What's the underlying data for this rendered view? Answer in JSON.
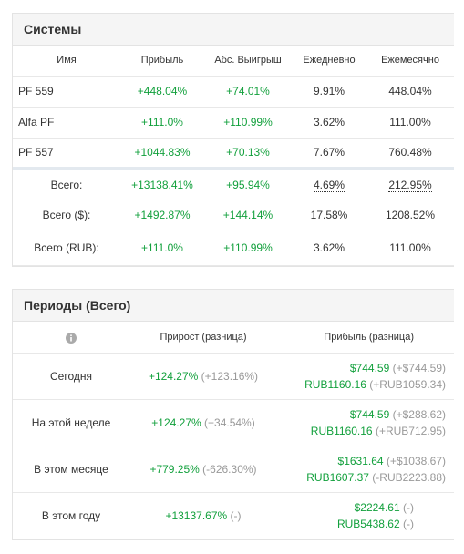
{
  "systems": {
    "title": "Системы",
    "columns": [
      "Имя",
      "Прибыль",
      "Абс. Выигрыш",
      "Ежедневно",
      "Ежемесячно"
    ],
    "rows": [
      [
        "PF 559",
        "+448.04%",
        "+74.01%",
        "9.91%",
        "448.04%"
      ],
      [
        "Alfa PF",
        "+111.0%",
        "+110.99%",
        "3.62%",
        "111.00%"
      ],
      [
        "PF 557",
        "+1044.83%",
        "+70.13%",
        "7.67%",
        "760.48%"
      ]
    ],
    "totals": [
      [
        "Всего:",
        "+13138.41%",
        "+95.94%",
        "4.69%",
        "212.95%"
      ],
      [
        "Всего ($):",
        "+1492.87%",
        "+144.14%",
        "17.58%",
        "1208.52%"
      ],
      [
        "Всего (RUB):",
        "+111.0%",
        "+110.99%",
        "3.62%",
        "111.00%"
      ]
    ]
  },
  "periods": {
    "title": "Периоды (Всего)",
    "columns": [
      "Прирост (разница)",
      "Прибыль (разница)"
    ],
    "rows": [
      {
        "label": "Сегодня",
        "growth": "+124.27%",
        "growth_diff": "(+123.16%)",
        "usd": "$744.59",
        "usd_diff": "(+$744.59)",
        "rub": "RUB1160.16",
        "rub_diff": "(+RUB1059.34)"
      },
      {
        "label": "На этой неделе",
        "growth": "+124.27%",
        "growth_diff": "(+34.54%)",
        "usd": "$744.59",
        "usd_diff": "(+$288.62)",
        "rub": "RUB1160.16",
        "rub_diff": "(+RUB712.95)"
      },
      {
        "label": "В этом месяце",
        "growth": "+779.25%",
        "growth_diff": "(-626.30%)",
        "usd": "$1631.64",
        "usd_diff": "(+$1038.67)",
        "rub": "RUB1607.37",
        "rub_diff": "(-RUB2223.88)"
      },
      {
        "label": "В этом году",
        "growth": "+13137.67%",
        "growth_diff": "(-)",
        "usd": "$2224.61",
        "usd_diff": "(-)",
        "rub": "RUB5438.62",
        "rub_diff": "(-)"
      }
    ]
  }
}
